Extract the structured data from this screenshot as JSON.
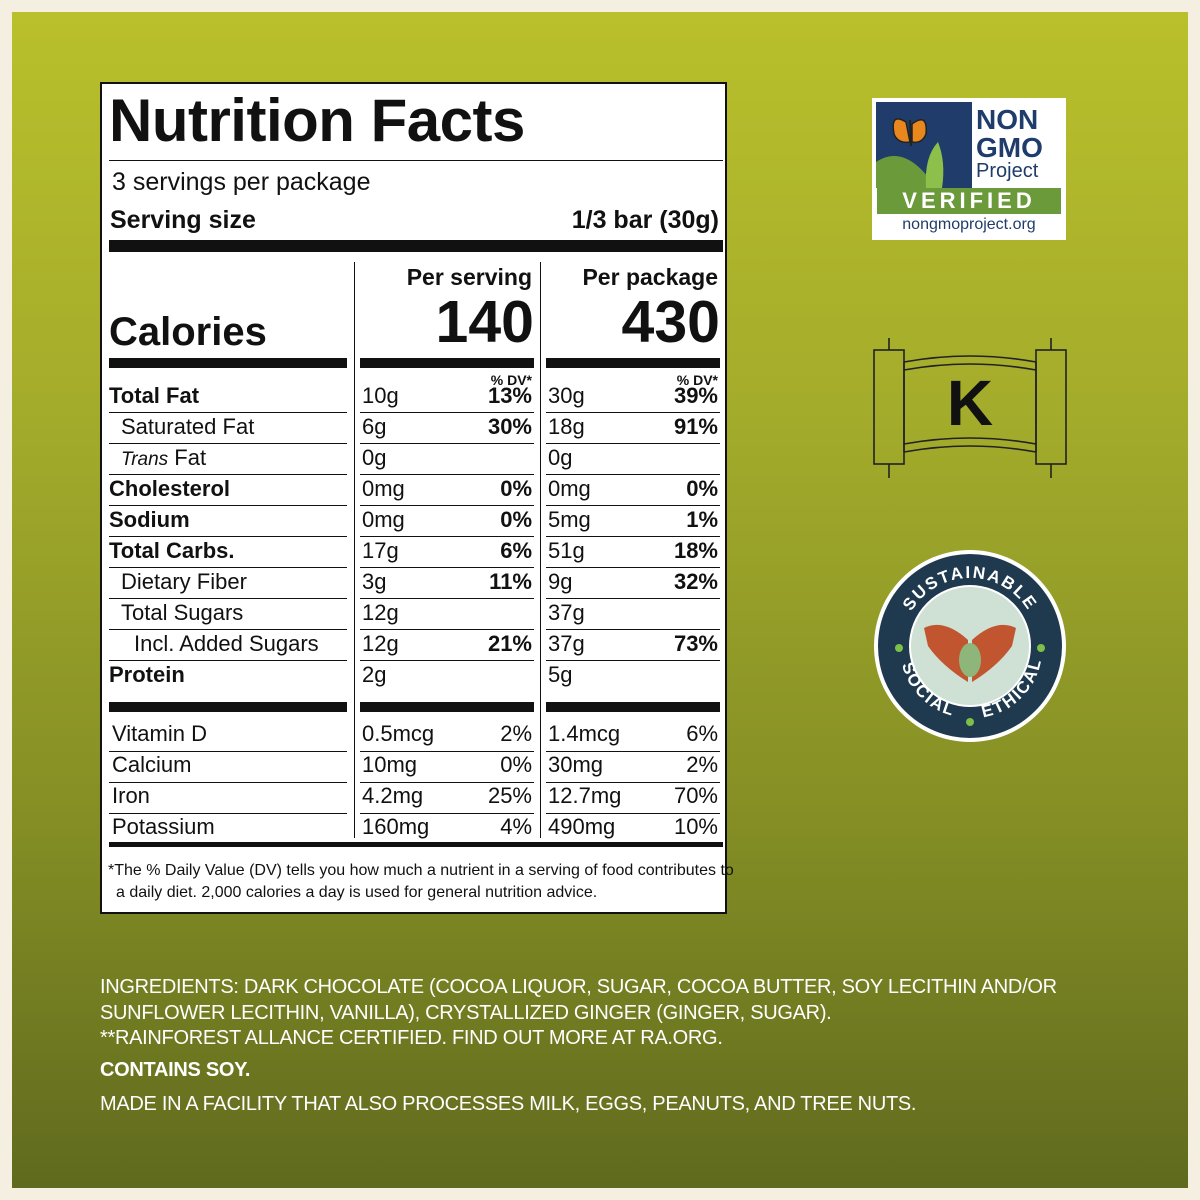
{
  "nutrition": {
    "title": "Nutrition Facts",
    "servings_per_package": "3 servings per package",
    "serving_size_label": "Serving size",
    "serving_size_value": "1/3 bar (30g)",
    "calories_label": "Calories",
    "per_serving_label": "Per serving",
    "per_package_label": "Per package",
    "calories_per_serving": "140",
    "calories_per_package": "430",
    "dv_label": "% DV*",
    "rows": [
      {
        "name": "Total Fat",
        "bold": true,
        "indent": 0,
        "s_amt": "10g",
        "s_dv": "13%",
        "p_amt": "30g",
        "p_dv": "39%"
      },
      {
        "name": "Saturated Fat",
        "bold": false,
        "indent": 1,
        "s_amt": "6g",
        "s_dv": "30%",
        "p_amt": "18g",
        "p_dv": "91%"
      },
      {
        "name_italic": "Trans",
        "name_rest": " Fat",
        "bold": false,
        "indent": 1,
        "s_amt": "0g",
        "s_dv": "",
        "p_amt": "0g",
        "p_dv": ""
      },
      {
        "name": "Cholesterol",
        "bold": true,
        "indent": 0,
        "s_amt": "0mg",
        "s_dv": "0%",
        "p_amt": "0mg",
        "p_dv": "0%"
      },
      {
        "name": "Sodium",
        "bold": true,
        "indent": 0,
        "s_amt": "0mg",
        "s_dv": "0%",
        "p_amt": "5mg",
        "p_dv": "1%"
      },
      {
        "name": "Total Carbs.",
        "bold": true,
        "indent": 0,
        "s_amt": "17g",
        "s_dv": "6%",
        "p_amt": "51g",
        "p_dv": "18%"
      },
      {
        "name": "Dietary Fiber",
        "bold": false,
        "indent": 1,
        "s_amt": "3g",
        "s_dv": "11%",
        "p_amt": "9g",
        "p_dv": "32%"
      },
      {
        "name": "Total Sugars",
        "bold": false,
        "indent": 1,
        "s_amt": "12g",
        "s_dv": "",
        "p_amt": "37g",
        "p_dv": ""
      },
      {
        "name": "Incl. Added Sugars",
        "bold": false,
        "indent": 2,
        "s_amt": "12g",
        "s_dv": "21%",
        "p_amt": "37g",
        "p_dv": "73%"
      },
      {
        "name": "Protein",
        "bold": true,
        "indent": 0,
        "s_amt": "2g",
        "s_dv": "",
        "p_amt": "5g",
        "p_dv": ""
      }
    ],
    "vitamins": [
      {
        "name": "Vitamin D",
        "s_amt": "0.5mcg",
        "s_dv": "2%",
        "p_amt": "1.4mcg",
        "p_dv": "6%"
      },
      {
        "name": "Calcium",
        "s_amt": "10mg",
        "s_dv": "0%",
        "p_amt": "30mg",
        "p_dv": "2%"
      },
      {
        "name": "Iron",
        "s_amt": "4.2mg",
        "s_dv": "25%",
        "p_amt": "12.7mg",
        "p_dv": "70%"
      },
      {
        "name": "Potassium",
        "s_amt": "160mg",
        "s_dv": "4%",
        "p_amt": "490mg",
        "p_dv": "10%"
      }
    ],
    "footnote_line1": "*The % Daily Value (DV) tells you how much a nutrient in a serving of food contributes to",
    "footnote_line2": "a daily diet. 2,000 calories a day is used for general nutrition advice."
  },
  "badges": {
    "nongmo": {
      "non": "NON",
      "gmo": "GMO",
      "project": "Project",
      "verified": "VERIFIED",
      "url": "nongmoproject.org",
      "icon": "butterfly-icon"
    },
    "kosher": {
      "letter": "K",
      "icon": "scroll-icon"
    },
    "seal": {
      "top": "SUSTAINABLE",
      "left": "SOCIAL",
      "right": "ETHICAL",
      "icon": "hands-heart-icon"
    }
  },
  "ingredients": {
    "line1": "INGREDIENTS: DARK CHOCOLATE (COCOA LIQUOR, SUGAR, COCOA BUTTER, SOY LECITHIN AND/OR",
    "line2": "SUNFLOWER LECITHIN, VANILLA), CRYSTALLIZED GINGER (GINGER, SUGAR).",
    "line3": "**RAINFOREST ALLANCE CERTIFIED. FIND OUT MORE AT RA.ORG.",
    "contains": "CONTAINS SOY.",
    "facility": "MADE IN A FACILITY THAT ALSO PROCESSES MILK, EGGS, PEANUTS, AND TREE NUTS."
  },
  "colors": {
    "panel_top": "#b9c02b",
    "panel_bottom": "#606a1e",
    "label_text": "#111111",
    "nongmo_blue": "#1f3c6b",
    "nongmo_green": "#6b9a3b",
    "seal_navy": "#1f3a4f"
  }
}
